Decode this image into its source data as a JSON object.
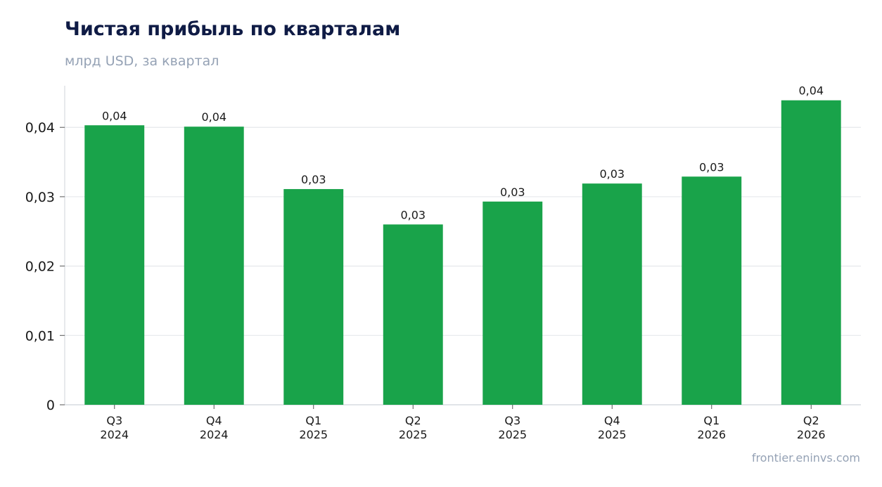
{
  "header": {
    "title": "Чистая прибыль по кварталам",
    "subtitle": "млрд USD, за квартал"
  },
  "footer": {
    "source": "frontier.eninvs.com"
  },
  "colors": {
    "bar": "#19a34a",
    "grid": "#e6e8ec",
    "axis": "#cfd3d9"
  },
  "chart_data": {
    "type": "bar",
    "categories": [
      "Q3\n2024",
      "Q4\n2024",
      "Q1\n2025",
      "Q2\n2025",
      "Q3\n2025",
      "Q4\n2025",
      "Q1\n2026",
      "Q2\n2026"
    ],
    "series": [
      {
        "values": [
          0.0403,
          0.0401,
          0.0311,
          0.026,
          0.0293,
          0.0319,
          0.0329,
          0.0439
        ],
        "data_labels": [
          "0,04",
          "0,04",
          "0,03",
          "0,03",
          "0,03",
          "0,03",
          "0,03",
          "0,04"
        ]
      }
    ],
    "ylim": [
      0,
      0.046
    ],
    "yticks": [
      0,
      0.01,
      0.02,
      0.03,
      0.04
    ],
    "ytick_labels": [
      "0",
      "0,01",
      "0,02",
      "0,03",
      "0,04"
    ],
    "grid": true,
    "legend": "none"
  }
}
